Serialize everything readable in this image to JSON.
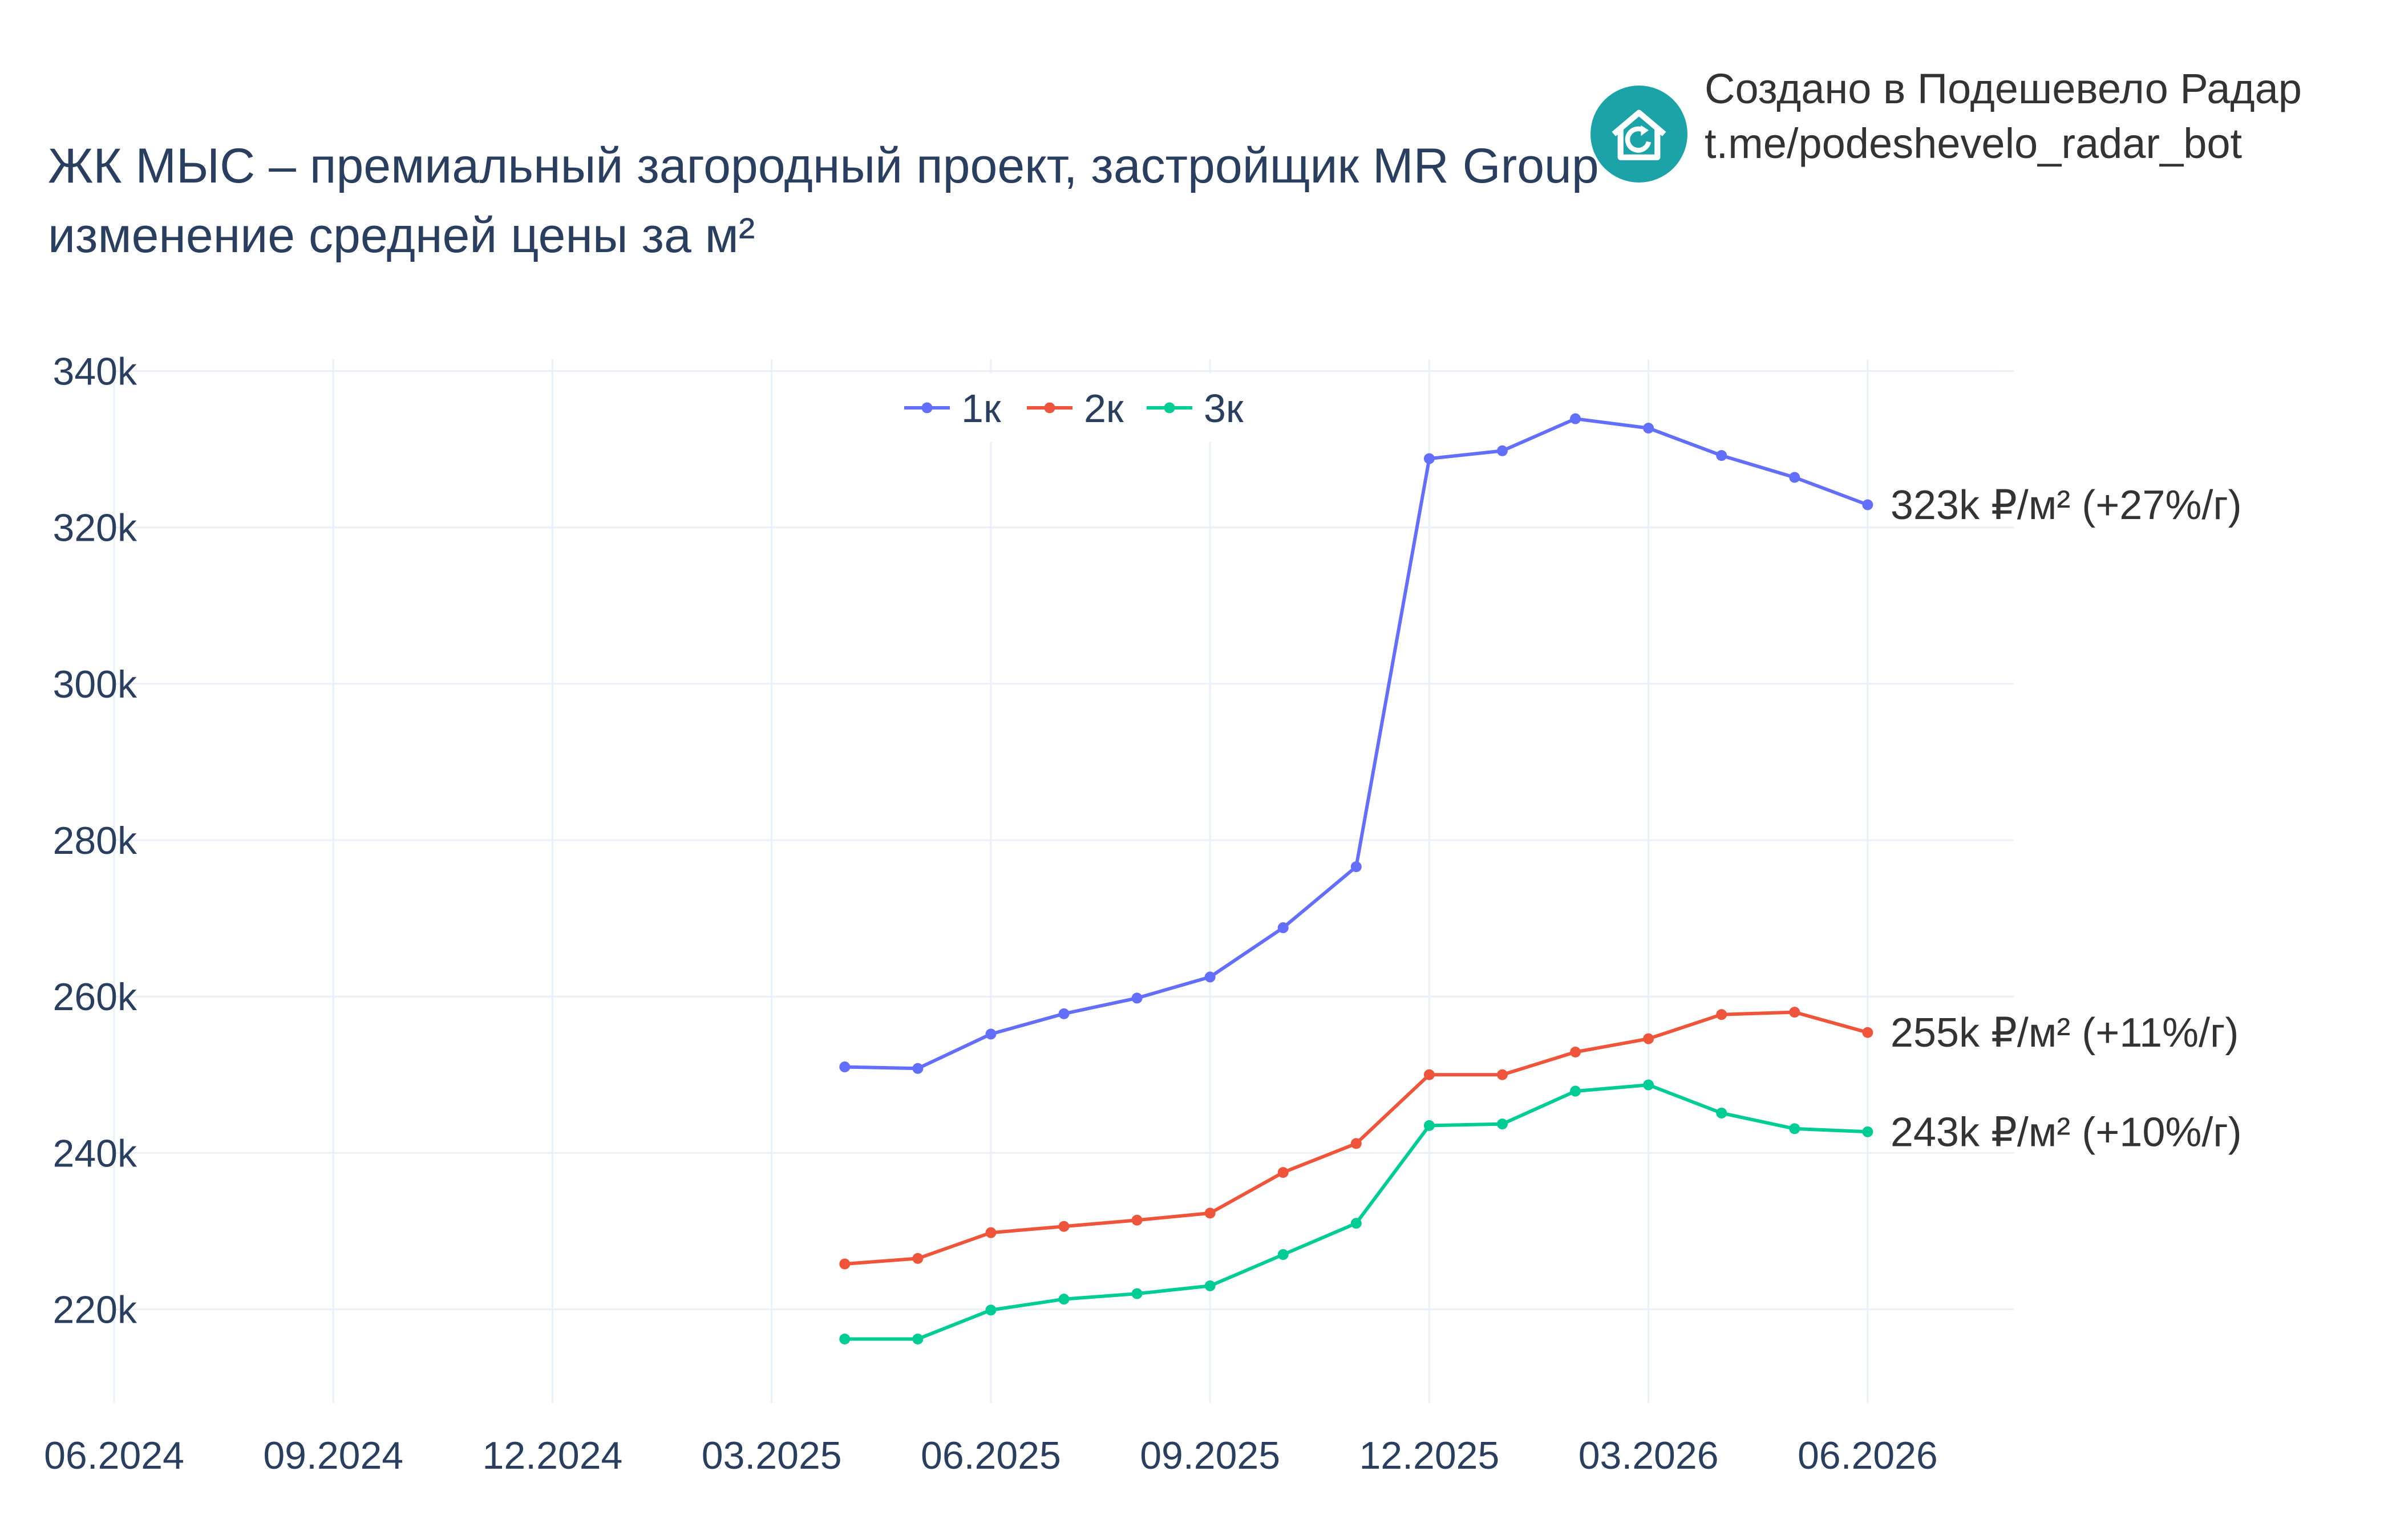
{
  "header": {
    "title_line1": "ЖК МЫС – премиальный загородный проект, застройщик MR Group",
    "title_line2": "изменение средней цены за м²"
  },
  "credit": {
    "line1": "Создано в Подешевело Радар",
    "line2": "t.me/podeshevelo_radar_bot",
    "logo_icon": "house-refresh-icon",
    "logo_color": "#1ba3a8"
  },
  "chart_data": {
    "type": "line",
    "title": "ЖК МЫС – премиальный загородный проект, застройщик MR Group — изменение средней цены за м²",
    "xlabel": "",
    "ylabel": "",
    "x_ticks": [
      "06.2024",
      "09.2024",
      "12.2024",
      "03.2025",
      "06.2025",
      "09.2025",
      "12.2025",
      "03.2026",
      "06.2026"
    ],
    "y_ticks": [
      "220k",
      "240k",
      "260k",
      "280k",
      "300k",
      "320k",
      "340k"
    ],
    "x_range": [
      "2024-06",
      "2026-08"
    ],
    "ylim": [
      208000,
      341500
    ],
    "grid": true,
    "legend": {
      "placement": "top-center"
    },
    "x": [
      "2025-04",
      "2025-05",
      "2025-06",
      "2025-07",
      "2025-08",
      "2025-09",
      "2025-10",
      "2025-11",
      "2025-12",
      "2026-01",
      "2026-02",
      "2026-03",
      "2026-04",
      "2026-05",
      "2026-06"
    ],
    "series": [
      {
        "name": "1к",
        "color": "#636efa",
        "end_label": "323k ₽/м² (+27%/г)",
        "values": [
          251000,
          250800,
          255200,
          257800,
          259800,
          262500,
          268800,
          276600,
          328800,
          329800,
          333900,
          332700,
          329200,
          326400,
          322900
        ]
      },
      {
        "name": "2к",
        "color": "#ef553b",
        "end_label": "255k ₽/м² (+11%/г)",
        "values": [
          225800,
          226500,
          229800,
          230600,
          231400,
          232300,
          237500,
          241200,
          250000,
          250000,
          252900,
          254600,
          257700,
          258000,
          255400
        ]
      },
      {
        "name": "3к",
        "color": "#00cc96",
        "end_label": "243k ₽/м² (+10%/г)",
        "values": [
          216200,
          216200,
          219900,
          221300,
          222000,
          223000,
          227000,
          231000,
          243500,
          243700,
          247900,
          248700,
          245100,
          243100,
          242700
        ]
      }
    ]
  }
}
